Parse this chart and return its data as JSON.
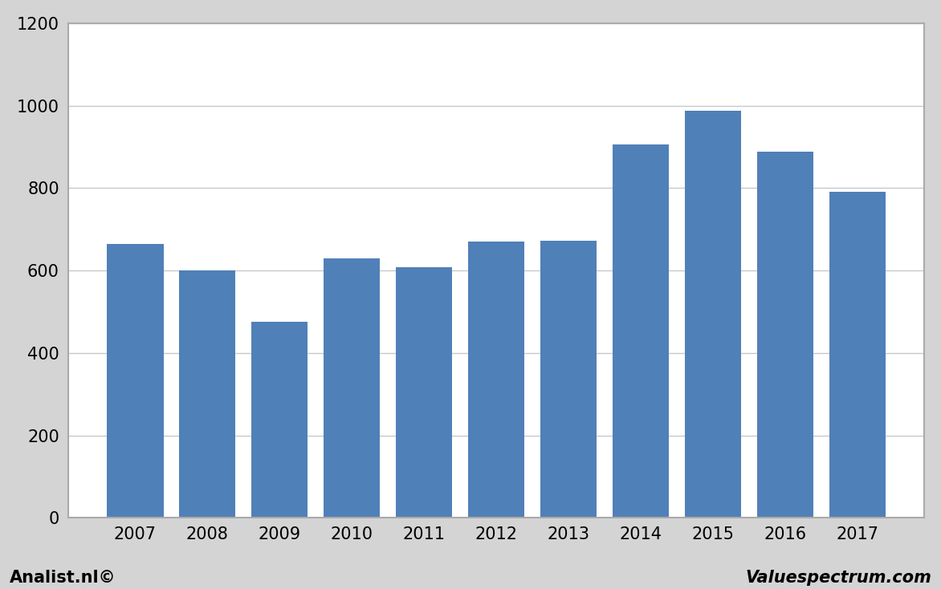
{
  "categories": [
    "2007",
    "2008",
    "2009",
    "2010",
    "2011",
    "2012",
    "2013",
    "2014",
    "2015",
    "2016",
    "2017"
  ],
  "values": [
    665,
    600,
    475,
    630,
    607,
    670,
    673,
    905,
    988,
    888,
    790
  ],
  "bar_color": "#5080b8",
  "background_color": "#d4d4d4",
  "plot_bg_color": "#ffffff",
  "ylim": [
    0,
    1200
  ],
  "yticks": [
    0,
    200,
    400,
    600,
    800,
    1000,
    1200
  ],
  "grid_color": "#c8c8c8",
  "footer_left": "Analist.nl©",
  "footer_right": "Valuespectrum.com",
  "border_color": "#aaaaaa",
  "tick_fontsize": 15,
  "footer_fontsize": 15,
  "bar_width": 0.78
}
